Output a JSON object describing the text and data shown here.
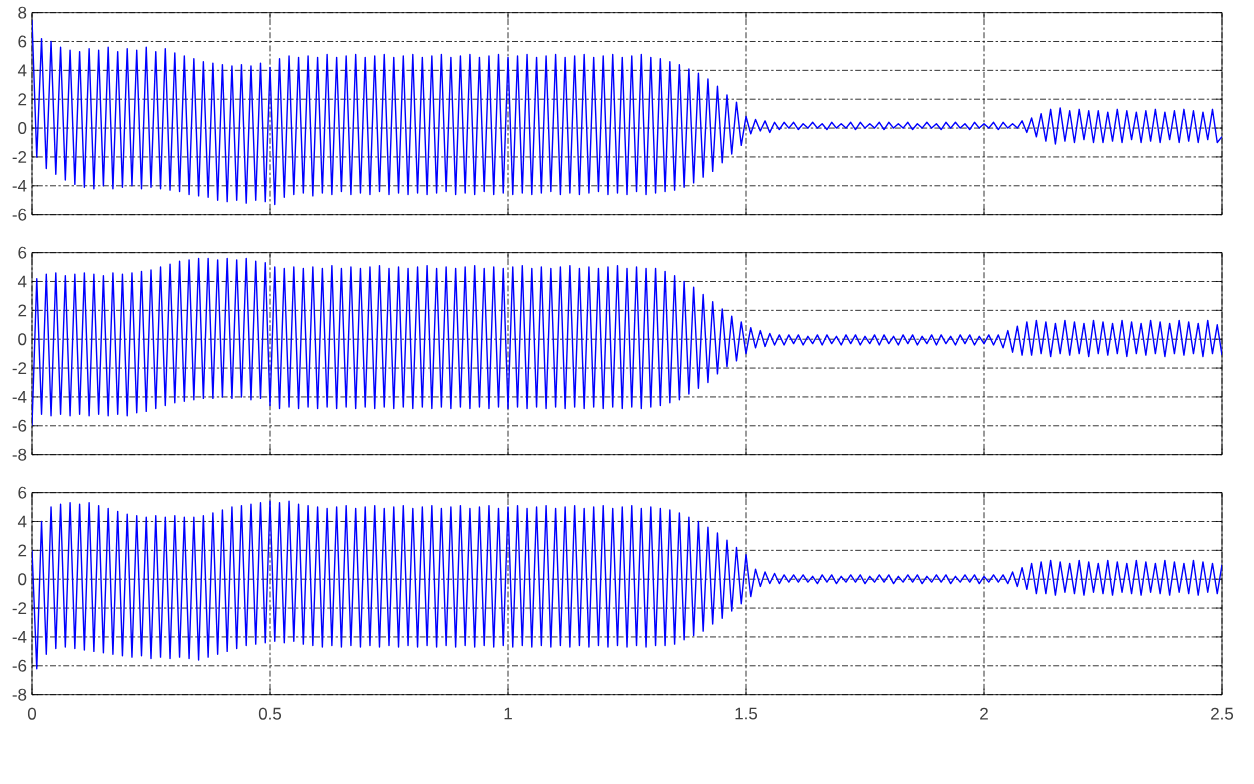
{
  "chart_data": [
    {
      "type": "line",
      "xlim": [
        0,
        2.5
      ],
      "xticks": [
        0,
        0.5,
        1,
        1.5,
        2,
        2.5
      ],
      "ylim": [
        -6,
        8
      ],
      "yticks": [
        -6,
        -4,
        -2,
        0,
        2,
        4,
        6,
        8
      ],
      "grid": true,
      "tick_labels": "y",
      "color": "#0000ff",
      "x": [
        0,
        0.01,
        0.02,
        0.03,
        0.04,
        0.05,
        0.06,
        0.07,
        0.08,
        0.09,
        0.1,
        0.11,
        0.12,
        0.13,
        0.14,
        0.15,
        0.16,
        0.17,
        0.18,
        0.19,
        0.2,
        0.21,
        0.22,
        0.23,
        0.24,
        0.25,
        0.26,
        0.27,
        0.28,
        0.29,
        0.3,
        0.31,
        0.32,
        0.33,
        0.34,
        0.35,
        0.36,
        0.37,
        0.38,
        0.39,
        0.4,
        0.41,
        0.42,
        0.43,
        0.44,
        0.45,
        0.46,
        0.47,
        0.48,
        0.49,
        0.5,
        0.51,
        0.52,
        0.53,
        0.54,
        0.55,
        0.56,
        0.57,
        0.58,
        0.59,
        0.6,
        0.61,
        0.62,
        0.63,
        0.64,
        0.65,
        0.66,
        0.67,
        0.68,
        0.69,
        0.7,
        0.71,
        0.72,
        0.73,
        0.74,
        0.75,
        0.76,
        0.77,
        0.78,
        0.79,
        0.8,
        0.81,
        0.82,
        0.83,
        0.84,
        0.85,
        0.86,
        0.87,
        0.88,
        0.89,
        0.9,
        0.91,
        0.92,
        0.93,
        0.94,
        0.95,
        0.96,
        0.97,
        0.98,
        0.99,
        1,
        1.01,
        1.02,
        1.03,
        1.04,
        1.05,
        1.06,
        1.07,
        1.08,
        1.09,
        1.1,
        1.11,
        1.12,
        1.13,
        1.14,
        1.15,
        1.16,
        1.17,
        1.18,
        1.19,
        1.2,
        1.21,
        1.22,
        1.23,
        1.24,
        1.25,
        1.26,
        1.27,
        1.28,
        1.29,
        1.3,
        1.31,
        1.32,
        1.33,
        1.34,
        1.35,
        1.36,
        1.37,
        1.38,
        1.39,
        1.4,
        1.41,
        1.42,
        1.43,
        1.44,
        1.45,
        1.46,
        1.47,
        1.48,
        1.49,
        1.5,
        1.51,
        1.52,
        1.53,
        1.54,
        1.55,
        1.56,
        1.57,
        1.58,
        1.59,
        1.6,
        1.61,
        1.62,
        1.63,
        1.64,
        1.65,
        1.66,
        1.67,
        1.68,
        1.69,
        1.7,
        1.71,
        1.72,
        1.73,
        1.74,
        1.75,
        1.76,
        1.77,
        1.78,
        1.79,
        1.8,
        1.81,
        1.82,
        1.83,
        1.84,
        1.85,
        1.86,
        1.87,
        1.88,
        1.89,
        1.9,
        1.91,
        1.92,
        1.93,
        1.94,
        1.95,
        1.96,
        1.97,
        1.98,
        1.99,
        2,
        2.01,
        2.02,
        2.03,
        2.04,
        2.05,
        2.06,
        2.07,
        2.08,
        2.09,
        2.1,
        2.11,
        2.12,
        2.13,
        2.14,
        2.15,
        2.16,
        2.17,
        2.18,
        2.19,
        2.2,
        2.21,
        2.22,
        2.23,
        2.24,
        2.25,
        2.26,
        2.27,
        2.28,
        2.29,
        2.3,
        2.31,
        2.32,
        2.33,
        2.34,
        2.35,
        2.36,
        2.37,
        2.38,
        2.39,
        2.4,
        2.41,
        2.42,
        2.43,
        2.44,
        2.45,
        2.46,
        2.47,
        2.48,
        2.49,
        2.5
      ],
      "values": [
        7.5,
        -2.0,
        6.2,
        -2.8,
        6.0,
        -3.2,
        5.6,
        -3.6,
        5.4,
        -3.9,
        5.3,
        -4.1,
        5.5,
        -4.2,
        5.4,
        -4.0,
        5.6,
        -4.2,
        5.3,
        -4.1,
        5.5,
        -4.0,
        5.4,
        -4.2,
        5.6,
        -4.1,
        5.3,
        -4.2,
        5.5,
        -4.3,
        5.2,
        -4.4,
        5.0,
        -4.6,
        4.8,
        -4.7,
        4.6,
        -4.8,
        4.5,
        -5.0,
        4.4,
        -5.1,
        4.3,
        -5.0,
        4.4,
        -5.2,
        4.3,
        -5.0,
        4.5,
        -5.1,
        4.2,
        -5.3,
        4.8,
        -4.8,
        5.0,
        -4.6,
        4.9,
        -4.5,
        5.0,
        -4.7,
        4.9,
        -4.5,
        5.1,
        -4.6,
        4.9,
        -4.4,
        5.0,
        -4.6,
        5.1,
        -4.5,
        4.9,
        -4.6,
        5.0,
        -4.4,
        5.1,
        -4.6,
        4.9,
        -4.5,
        5.0,
        -4.6,
        5.1,
        -4.5,
        4.9,
        -4.6,
        5.0,
        -4.5,
        5.1,
        -4.4,
        4.9,
        -4.6,
        5.0,
        -4.5,
        5.1,
        -4.6,
        4.9,
        -4.4,
        5.0,
        -4.6,
        5.1,
        -4.5,
        4.9,
        -4.6,
        5.0,
        -4.5,
        5.1,
        -4.6,
        4.9,
        -4.5,
        5.0,
        -4.4,
        5.1,
        -4.6,
        4.9,
        -4.5,
        5.0,
        -4.6,
        5.1,
        -4.5,
        4.9,
        -4.4,
        5.0,
        -4.6,
        5.1,
        -4.5,
        4.9,
        -4.6,
        5.0,
        -4.4,
        5.1,
        -4.6,
        4.9,
        -4.5,
        4.8,
        -4.4,
        4.6,
        -4.3,
        4.4,
        -4.1,
        4.1,
        -3.8,
        3.8,
        -3.4,
        3.4,
        -3.0,
        2.9,
        -2.4,
        2.3,
        -1.8,
        1.8,
        -1.2,
        0.8,
        -0.4,
        0.6,
        -0.2,
        0.5,
        -0.3,
        0.4,
        -0.1,
        0.4,
        0.0,
        0.4,
        -0.1,
        0.3,
        0.0,
        0.4,
        0.0,
        0.3,
        -0.1,
        0.4,
        0.0,
        0.3,
        0.0,
        0.4,
        -0.1,
        0.4,
        0.0,
        0.3,
        0.0,
        0.4,
        -0.1,
        0.4,
        0.0,
        0.3,
        0.0,
        0.4,
        -0.1,
        0.3,
        0.0,
        0.4,
        0.0,
        0.3,
        -0.1,
        0.4,
        0.0,
        0.4,
        0.0,
        0.3,
        -0.1,
        0.4,
        0.0,
        0.3,
        0.0,
        0.4,
        -0.1,
        0.4,
        0.0,
        0.3,
        0.0,
        0.5,
        -0.3,
        0.7,
        -0.6,
        1.0,
        -0.9,
        1.3,
        -1.1,
        1.4,
        -0.9,
        1.2,
        -1.0,
        1.3,
        -0.8,
        1.2,
        -1.0,
        1.2,
        -1.0,
        1.1,
        -0.9,
        1.3,
        -1.0,
        1.2,
        -0.8,
        1.1,
        -1.0,
        1.2,
        -0.9,
        1.3,
        -1.0,
        1.1,
        -0.8,
        1.2,
        -1.0,
        1.3,
        -0.9,
        1.2,
        -1.0,
        1.1,
        -0.8,
        1.3,
        -1.0,
        -0.6
      ]
    },
    {
      "type": "line",
      "xlim": [
        0,
        2.5
      ],
      "xticks": [
        0,
        0.5,
        1,
        1.5,
        2,
        2.5
      ],
      "ylim": [
        -8,
        6
      ],
      "yticks": [
        -8,
        -6,
        -4,
        -2,
        0,
        2,
        4,
        6
      ],
      "grid": true,
      "tick_labels": "y",
      "color": "#0000ff",
      "x": [
        0,
        0.01,
        0.02,
        0.03,
        0.04,
        0.05,
        0.06,
        0.07,
        0.08,
        0.09,
        0.1,
        0.11,
        0.12,
        0.13,
        0.14,
        0.15,
        0.16,
        0.17,
        0.18,
        0.19,
        0.2,
        0.21,
        0.22,
        0.23,
        0.24,
        0.25,
        0.26,
        0.27,
        0.28,
        0.29,
        0.3,
        0.31,
        0.32,
        0.33,
        0.34,
        0.35,
        0.36,
        0.37,
        0.38,
        0.39,
        0.4,
        0.41,
        0.42,
        0.43,
        0.44,
        0.45,
        0.46,
        0.47,
        0.48,
        0.49,
        0.5,
        0.51,
        0.52,
        0.53,
        0.54,
        0.55,
        0.56,
        0.57,
        0.58,
        0.59,
        0.6,
        0.61,
        0.62,
        0.63,
        0.64,
        0.65,
        0.66,
        0.67,
        0.68,
        0.69,
        0.7,
        0.71,
        0.72,
        0.73,
        0.74,
        0.75,
        0.76,
        0.77,
        0.78,
        0.79,
        0.8,
        0.81,
        0.82,
        0.83,
        0.84,
        0.85,
        0.86,
        0.87,
        0.88,
        0.89,
        0.9,
        0.91,
        0.92,
        0.93,
        0.94,
        0.95,
        0.96,
        0.97,
        0.98,
        0.99,
        1,
        1.01,
        1.02,
        1.03,
        1.04,
        1.05,
        1.06,
        1.07,
        1.08,
        1.09,
        1.1,
        1.11,
        1.12,
        1.13,
        1.14,
        1.15,
        1.16,
        1.17,
        1.18,
        1.19,
        1.2,
        1.21,
        1.22,
        1.23,
        1.24,
        1.25,
        1.26,
        1.27,
        1.28,
        1.29,
        1.3,
        1.31,
        1.32,
        1.33,
        1.34,
        1.35,
        1.36,
        1.37,
        1.38,
        1.39,
        1.4,
        1.41,
        1.42,
        1.43,
        1.44,
        1.45,
        1.46,
        1.47,
        1.48,
        1.49,
        1.5,
        1.51,
        1.52,
        1.53,
        1.54,
        1.55,
        1.56,
        1.57,
        1.58,
        1.59,
        1.6,
        1.61,
        1.62,
        1.63,
        1.64,
        1.65,
        1.66,
        1.67,
        1.68,
        1.69,
        1.7,
        1.71,
        1.72,
        1.73,
        1.74,
        1.75,
        1.76,
        1.77,
        1.78,
        1.79,
        1.8,
        1.81,
        1.82,
        1.83,
        1.84,
        1.85,
        1.86,
        1.87,
        1.88,
        1.89,
        1.9,
        1.91,
        1.92,
        1.93,
        1.94,
        1.95,
        1.96,
        1.97,
        1.98,
        1.99,
        2,
        2.01,
        2.02,
        2.03,
        2.04,
        2.05,
        2.06,
        2.07,
        2.08,
        2.09,
        2.1,
        2.11,
        2.12,
        2.13,
        2.14,
        2.15,
        2.16,
        2.17,
        2.18,
        2.19,
        2.2,
        2.21,
        2.22,
        2.23,
        2.24,
        2.25,
        2.26,
        2.27,
        2.28,
        2.29,
        2.3,
        2.31,
        2.32,
        2.33,
        2.34,
        2.35,
        2.36,
        2.37,
        2.38,
        2.39,
        2.4,
        2.41,
        2.42,
        2.43,
        2.44,
        2.45,
        2.46,
        2.47,
        2.48,
        2.49,
        2.5
      ],
      "values": [
        -6.0,
        4.2,
        -5.2,
        4.5,
        -5.3,
        4.6,
        -5.2,
        4.4,
        -5.3,
        4.5,
        -5.2,
        4.6,
        -5.3,
        4.5,
        -5.2,
        4.4,
        -5.3,
        4.6,
        -5.2,
        4.5,
        -5.3,
        4.6,
        -5.1,
        4.7,
        -5.0,
        4.8,
        -4.8,
        5.0,
        -4.6,
        5.2,
        -4.4,
        5.4,
        -4.3,
        5.5,
        -4.2,
        5.6,
        -4.1,
        5.6,
        -4.1,
        5.5,
        -4.0,
        5.6,
        -4.1,
        5.5,
        -4.0,
        5.6,
        -4.2,
        5.4,
        -4.1,
        5.3,
        -4.6,
        5.0,
        -4.8,
        4.9,
        -4.7,
        5.0,
        -4.8,
        4.9,
        -4.7,
        5.0,
        -4.8,
        4.9,
        -4.7,
        5.1,
        -4.8,
        4.9,
        -4.7,
        5.0,
        -4.8,
        4.9,
        -4.7,
        5.0,
        -4.8,
        5.1,
        -4.7,
        4.9,
        -4.8,
        5.0,
        -4.7,
        4.9,
        -4.8,
        5.0,
        -4.7,
        5.1,
        -4.8,
        4.9,
        -4.7,
        5.0,
        -4.8,
        4.9,
        -4.7,
        5.0,
        -4.8,
        5.1,
        -4.7,
        4.9,
        -4.8,
        5.0,
        -4.7,
        4.9,
        -4.8,
        5.0,
        -4.7,
        5.1,
        -4.8,
        4.9,
        -4.7,
        5.0,
        -4.8,
        4.9,
        -4.7,
        5.0,
        -4.8,
        5.1,
        -4.7,
        4.9,
        -4.8,
        5.0,
        -4.7,
        4.9,
        -4.8,
        5.0,
        -4.7,
        5.1,
        -4.8,
        4.9,
        -4.7,
        5.0,
        -4.8,
        4.9,
        -4.7,
        4.9,
        -4.6,
        4.7,
        -4.4,
        4.4,
        -4.2,
        4.0,
        -3.8,
        3.6,
        -3.4,
        3.1,
        -3.0,
        2.6,
        -2.4,
        2.1,
        -1.9,
        1.6,
        -1.5,
        1.2,
        -1.0,
        0.8,
        -0.6,
        0.6,
        -0.5,
        0.4,
        -0.4,
        0.3,
        -0.4,
        0.3,
        -0.3,
        0.3,
        -0.4,
        0.2,
        -0.3,
        0.3,
        -0.4,
        0.3,
        -0.3,
        0.2,
        -0.4,
        0.3,
        -0.3,
        0.3,
        -0.4,
        0.2,
        -0.3,
        0.3,
        -0.4,
        0.3,
        -0.3,
        0.2,
        -0.4,
        0.3,
        -0.3,
        0.3,
        -0.4,
        0.2,
        -0.3,
        0.3,
        -0.4,
        0.3,
        -0.3,
        0.2,
        -0.4,
        0.3,
        -0.3,
        0.3,
        -0.4,
        0.2,
        -0.3,
        0.3,
        -0.4,
        0.3,
        -0.6,
        0.6,
        -0.9,
        0.9,
        -1.1,
        1.2,
        -1.1,
        1.3,
        -1.0,
        1.2,
        -1.2,
        1.1,
        -1.0,
        1.3,
        -1.1,
        1.2,
        -1.0,
        1.1,
        -1.2,
        1.3,
        -1.0,
        1.2,
        -1.1,
        1.1,
        -1.0,
        1.3,
        -1.2,
        1.2,
        -1.0,
        1.1,
        -1.1,
        1.3,
        -1.0,
        1.2,
        -1.2,
        1.1,
        -1.0,
        1.3,
        -1.1,
        1.2,
        -1.0,
        1.1,
        -1.2,
        1.3,
        -1.0,
        1.0,
        -1.1
      ]
    },
    {
      "type": "line",
      "xlim": [
        0,
        2.5
      ],
      "xticks": [
        0,
        0.5,
        1,
        1.5,
        2,
        2.5
      ],
      "ylim": [
        -8,
        6
      ],
      "yticks": [
        -8,
        -6,
        -4,
        -2,
        0,
        2,
        4,
        6
      ],
      "grid": true,
      "color": "#0000ff",
      "x": [
        0,
        0.01,
        0.02,
        0.03,
        0.04,
        0.05,
        0.06,
        0.07,
        0.08,
        0.09,
        0.1,
        0.11,
        0.12,
        0.13,
        0.14,
        0.15,
        0.16,
        0.17,
        0.18,
        0.19,
        0.2,
        0.21,
        0.22,
        0.23,
        0.24,
        0.25,
        0.26,
        0.27,
        0.28,
        0.29,
        0.3,
        0.31,
        0.32,
        0.33,
        0.34,
        0.35,
        0.36,
        0.37,
        0.38,
        0.39,
        0.4,
        0.41,
        0.42,
        0.43,
        0.44,
        0.45,
        0.46,
        0.47,
        0.48,
        0.49,
        0.5,
        0.51,
        0.52,
        0.53,
        0.54,
        0.55,
        0.56,
        0.57,
        0.58,
        0.59,
        0.6,
        0.61,
        0.62,
        0.63,
        0.64,
        0.65,
        0.66,
        0.67,
        0.68,
        0.69,
        0.7,
        0.71,
        0.72,
        0.73,
        0.74,
        0.75,
        0.76,
        0.77,
        0.78,
        0.79,
        0.8,
        0.81,
        0.82,
        0.83,
        0.84,
        0.85,
        0.86,
        0.87,
        0.88,
        0.89,
        0.9,
        0.91,
        0.92,
        0.93,
        0.94,
        0.95,
        0.96,
        0.97,
        0.98,
        0.99,
        1,
        1.01,
        1.02,
        1.03,
        1.04,
        1.05,
        1.06,
        1.07,
        1.08,
        1.09,
        1.1,
        1.11,
        1.12,
        1.13,
        1.14,
        1.15,
        1.16,
        1.17,
        1.18,
        1.19,
        1.2,
        1.21,
        1.22,
        1.23,
        1.24,
        1.25,
        1.26,
        1.27,
        1.28,
        1.29,
        1.3,
        1.31,
        1.32,
        1.33,
        1.34,
        1.35,
        1.36,
        1.37,
        1.38,
        1.39,
        1.4,
        1.41,
        1.42,
        1.43,
        1.44,
        1.45,
        1.46,
        1.47,
        1.48,
        1.49,
        1.5,
        1.51,
        1.52,
        1.53,
        1.54,
        1.55,
        1.56,
        1.57,
        1.58,
        1.59,
        1.6,
        1.61,
        1.62,
        1.63,
        1.64,
        1.65,
        1.66,
        1.67,
        1.68,
        1.69,
        1.7,
        1.71,
        1.72,
        1.73,
        1.74,
        1.75,
        1.76,
        1.77,
        1.78,
        1.79,
        1.8,
        1.81,
        1.82,
        1.83,
        1.84,
        1.85,
        1.86,
        1.87,
        1.88,
        1.89,
        1.9,
        1.91,
        1.92,
        1.93,
        1.94,
        1.95,
        1.96,
        1.97,
        1.98,
        1.99,
        2,
        2.01,
        2.02,
        2.03,
        2.04,
        2.05,
        2.06,
        2.07,
        2.08,
        2.09,
        2.1,
        2.11,
        2.12,
        2.13,
        2.14,
        2.15,
        2.16,
        2.17,
        2.18,
        2.19,
        2.2,
        2.21,
        2.22,
        2.23,
        2.24,
        2.25,
        2.26,
        2.27,
        2.28,
        2.29,
        2.3,
        2.31,
        2.32,
        2.33,
        2.34,
        2.35,
        2.36,
        2.37,
        2.38,
        2.39,
        2.4,
        2.41,
        2.42,
        2.43,
        2.44,
        2.45,
        2.46,
        2.47,
        2.48,
        2.49,
        2.5
      ],
      "values": [
        2.0,
        -6.2,
        4.0,
        -5.2,
        5.0,
        -4.8,
        5.2,
        -4.7,
        5.3,
        -4.8,
        5.2,
        -4.9,
        5.3,
        -5.0,
        5.1,
        -5.1,
        4.9,
        -5.2,
        4.7,
        -5.3,
        4.5,
        -5.4,
        4.4,
        -5.3,
        4.3,
        -5.5,
        4.4,
        -5.4,
        4.3,
        -5.5,
        4.4,
        -5.4,
        4.3,
        -5.5,
        4.3,
        -5.6,
        4.4,
        -5.4,
        4.6,
        -5.2,
        4.8,
        -5.0,
        5.0,
        -4.8,
        5.1,
        -4.6,
        5.2,
        -4.5,
        5.3,
        -4.4,
        5.4,
        -4.3,
        5.3,
        -4.4,
        5.4,
        -4.3,
        5.2,
        -4.5,
        5.1,
        -4.6,
        5.0,
        -4.7,
        4.9,
        -4.6,
        5.0,
        -4.7,
        5.1,
        -4.6,
        4.9,
        -4.7,
        5.0,
        -4.6,
        5.1,
        -4.7,
        4.9,
        -4.6,
        5.0,
        -4.7,
        5.1,
        -4.6,
        4.9,
        -4.7,
        5.0,
        -4.6,
        5.1,
        -4.7,
        4.9,
        -4.6,
        5.0,
        -4.7,
        5.1,
        -4.6,
        4.9,
        -4.7,
        5.0,
        -4.6,
        5.1,
        -4.7,
        4.9,
        -4.6,
        5.0,
        -4.7,
        5.1,
        -4.6,
        4.9,
        -4.7,
        5.0,
        -4.6,
        5.1,
        -4.7,
        4.9,
        -4.6,
        5.0,
        -4.7,
        5.1,
        -4.6,
        4.9,
        -4.7,
        5.0,
        -4.6,
        5.1,
        -4.7,
        4.9,
        -4.6,
        5.0,
        -4.7,
        5.1,
        -4.6,
        4.9,
        -4.7,
        5.0,
        -4.6,
        4.9,
        -4.6,
        4.8,
        -4.5,
        4.6,
        -4.2,
        4.3,
        -3.9,
        4.0,
        -3.6,
        3.6,
        -3.1,
        3.2,
        -2.7,
        2.7,
        -2.2,
        2.2,
        -1.7,
        1.7,
        -1.2,
        0.7,
        -0.5,
        0.5,
        -0.3,
        0.4,
        -0.3,
        0.3,
        -0.2,
        0.3,
        -0.2,
        0.3,
        -0.2,
        0.2,
        -0.3,
        0.3,
        -0.2,
        0.3,
        -0.3,
        0.2,
        -0.2,
        0.3,
        -0.2,
        0.3,
        -0.3,
        0.2,
        -0.2,
        0.3,
        -0.2,
        0.3,
        -0.3,
        0.2,
        -0.2,
        0.3,
        -0.2,
        0.3,
        -0.3,
        0.2,
        -0.2,
        0.3,
        -0.2,
        0.3,
        -0.3,
        0.2,
        -0.2,
        0.3,
        -0.2,
        0.3,
        -0.3,
        0.2,
        -0.2,
        0.3,
        -0.2,
        0.3,
        -0.3,
        0.5,
        -0.5,
        0.8,
        -0.7,
        1.1,
        -1.0,
        1.2,
        -1.0,
        1.3,
        -1.1,
        1.2,
        -0.9,
        1.1,
        -1.0,
        1.3,
        -1.1,
        1.2,
        -0.9,
        1.1,
        -1.0,
        1.3,
        -1.1,
        1.2,
        -0.9,
        1.1,
        -1.0,
        1.3,
        -1.1,
        1.2,
        -0.9,
        1.1,
        -1.0,
        1.3,
        -1.1,
        1.2,
        -0.9,
        1.1,
        -1.0,
        1.3,
        -1.1,
        1.2,
        -0.9,
        1.1,
        -1.0,
        1.0
      ]
    }
  ]
}
